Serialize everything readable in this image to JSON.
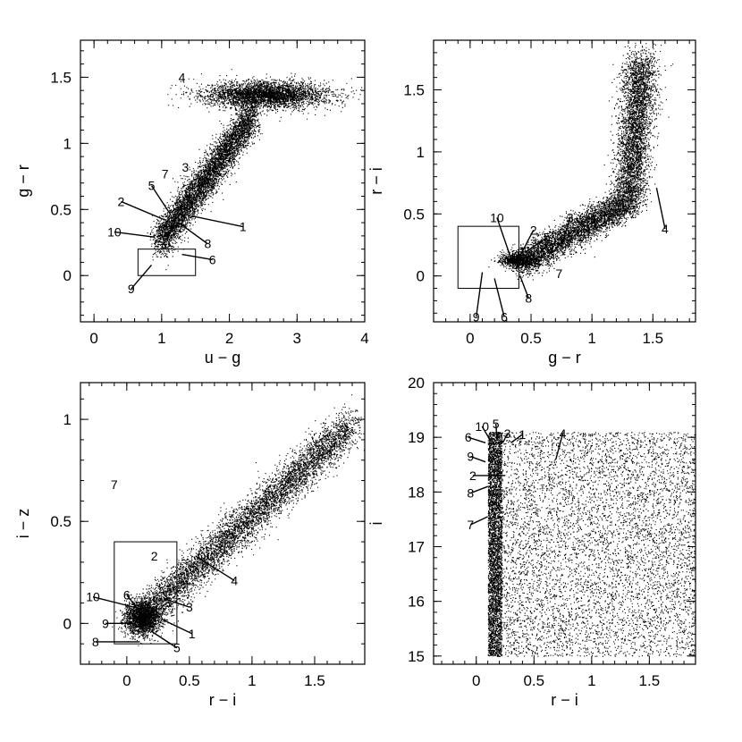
{
  "chart_data": [
    {
      "type": "scatter",
      "xlabel": "u − g",
      "ylabel": "g − r",
      "xlim": [
        -0.2,
        4.0
      ],
      "ylim": [
        -0.35,
        1.78
      ],
      "xticks": [
        0,
        1,
        2,
        3,
        4
      ],
      "xtick_labels": [
        "0",
        "1",
        "2",
        "3",
        "4"
      ],
      "yticks": [
        0,
        0.5,
        1,
        1.5
      ],
      "ytick_labels": [
        "0",
        "0.5",
        "1",
        "1.5"
      ],
      "grid": false,
      "density": [
        {
          "shape": "band",
          "from": [
            0.95,
            0.25
          ],
          "to": [
            2.35,
            1.22
          ],
          "width": 0.07,
          "weight": 0.6
        },
        {
          "shape": "blob",
          "center": [
            2.55,
            1.37
          ],
          "spread": [
            0.45,
            0.05
          ],
          "weight": 0.4
        }
      ],
      "selection_box": {
        "x": [
          0.65,
          1.5
        ],
        "y": [
          0.0,
          0.2
        ]
      },
      "annotations": [
        {
          "label": "1",
          "text_at": [
            2.2,
            0.37
          ],
          "point_at": [
            1.45,
            0.45
          ]
        },
        {
          "label": "2",
          "text_at": [
            0.4,
            0.56
          ],
          "point_at": [
            1.05,
            0.42
          ]
        },
        {
          "label": "3",
          "text_at": [
            1.35,
            0.82
          ],
          "point_at": null
        },
        {
          "label": "4",
          "text_at": [
            1.3,
            1.5
          ],
          "point_at": null
        },
        {
          "label": "5",
          "text_at": [
            0.85,
            0.68
          ],
          "point_at": [
            1.12,
            0.47
          ]
        },
        {
          "label": "6",
          "text_at": [
            1.75,
            0.12
          ],
          "point_at": [
            1.3,
            0.16
          ]
        },
        {
          "label": "7",
          "text_at": [
            1.05,
            0.77
          ],
          "point_at": null
        },
        {
          "label": "8",
          "text_at": [
            1.68,
            0.24
          ],
          "point_at": [
            1.25,
            0.4
          ]
        },
        {
          "label": "9",
          "text_at": [
            0.55,
            -0.1
          ],
          "point_at": [
            0.85,
            0.08
          ]
        },
        {
          "label": "10",
          "text_at": [
            0.3,
            0.33
          ],
          "point_at": [
            0.9,
            0.29
          ]
        }
      ]
    },
    {
      "type": "scatter",
      "xlabel": "g − r",
      "ylabel": "r − i",
      "xlim": [
        -0.3,
        1.85
      ],
      "ylim": [
        -0.37,
        1.9
      ],
      "xticks": [
        0,
        0.5,
        1,
        1.5
      ],
      "xtick_labels": [
        "0",
        "0.5",
        "1",
        "1.5"
      ],
      "yticks": [
        0,
        0.5,
        1,
        1.5
      ],
      "ytick_labels": [
        "0",
        "0.5",
        "1",
        "1.5"
      ],
      "grid": false,
      "density": [
        {
          "shape": "band",
          "from": [
            0.4,
            0.1
          ],
          "to": [
            1.3,
            0.6
          ],
          "width": 0.06,
          "weight": 0.45
        },
        {
          "shape": "band",
          "from": [
            1.3,
            0.6
          ],
          "to": [
            1.4,
            1.75
          ],
          "width": 0.07,
          "weight": 0.45
        },
        {
          "shape": "blob",
          "center": [
            0.4,
            0.13
          ],
          "spread": [
            0.08,
            0.03
          ],
          "weight": 0.1
        }
      ],
      "selection_box": {
        "x": [
          -0.1,
          0.4
        ],
        "y": [
          -0.1,
          0.4
        ]
      },
      "annotations": [
        {
          "label": "1",
          "text_at": [
            0.43,
            0.2
          ],
          "point_at": [
            0.4,
            0.15
          ]
        },
        {
          "label": "2",
          "text_at": [
            0.52,
            0.37
          ],
          "point_at": [
            0.42,
            0.18
          ]
        },
        {
          "label": "3",
          "text_at": [
            0.82,
            0.47
          ],
          "point_at": [
            0.75,
            0.24
          ]
        },
        {
          "label": "4",
          "text_at": [
            1.6,
            0.38
          ],
          "point_at": [
            1.53,
            0.71
          ]
        },
        {
          "label": "5",
          "text_at": [
            0.63,
            0.31
          ],
          "point_at": [
            0.45,
            0.19
          ]
        },
        {
          "label": "6",
          "text_at": [
            0.28,
            -0.33
          ],
          "point_at": [
            0.2,
            -0.02
          ]
        },
        {
          "label": "7",
          "text_at": [
            0.73,
            0.02
          ],
          "point_at": null
        },
        {
          "label": "8",
          "text_at": [
            0.48,
            -0.18
          ],
          "point_at": [
            0.41,
            0.0
          ]
        },
        {
          "label": "9",
          "text_at": [
            0.05,
            -0.33
          ],
          "point_at": [
            0.1,
            0.03
          ]
        },
        {
          "label": "10",
          "text_at": [
            0.22,
            0.47
          ],
          "point_at": [
            0.35,
            0.1
          ]
        }
      ]
    },
    {
      "type": "scatter",
      "xlabel": "r − i",
      "ylabel": "i − z",
      "xlim": [
        -0.37,
        1.9
      ],
      "ylim": [
        -0.2,
        1.18
      ],
      "xticks": [
        0,
        0.5,
        1,
        1.5
      ],
      "xtick_labels": [
        "0",
        "0.5",
        "1",
        "1.5"
      ],
      "yticks": [
        0,
        0.5,
        1
      ],
      "ytick_labels": [
        "0",
        "0.5",
        "1"
      ],
      "grid": false,
      "density": [
        {
          "shape": "band",
          "from": [
            0.1,
            0.02
          ],
          "to": [
            1.8,
            0.98
          ],
          "width": 0.05,
          "weight": 0.75
        },
        {
          "shape": "blob",
          "center": [
            0.12,
            0.03
          ],
          "spread": [
            0.07,
            0.04
          ],
          "weight": 0.25
        }
      ],
      "selection_box": {
        "x": [
          -0.1,
          0.4
        ],
        "y": [
          -0.1,
          0.4
        ]
      },
      "annotations": [
        {
          "label": "1",
          "text_at": [
            0.52,
            -0.05
          ],
          "point_at": [
            0.28,
            0.02
          ]
        },
        {
          "label": "2",
          "text_at": [
            0.22,
            0.33
          ],
          "point_at": null
        },
        {
          "label": "3",
          "text_at": [
            0.5,
            0.08
          ],
          "point_at": [
            0.3,
            0.12
          ]
        },
        {
          "label": "4",
          "text_at": [
            0.86,
            0.21
          ],
          "point_at": [
            0.55,
            0.33
          ]
        },
        {
          "label": "5",
          "text_at": [
            0.4,
            -0.12
          ],
          "point_at": [
            0.2,
            -0.04
          ]
        },
        {
          "label": "6",
          "text_at": [
            0.0,
            0.14
          ],
          "point_at": [
            0.1,
            0.06
          ]
        },
        {
          "label": "7",
          "text_at": [
            -0.1,
            0.68
          ],
          "point_at": null
        },
        {
          "label": "8",
          "text_at": [
            -0.25,
            -0.09
          ],
          "point_at": [
            0.1,
            -0.09
          ]
        },
        {
          "label": "9",
          "text_at": [
            -0.17,
            0.0
          ],
          "point_at": [
            0.05,
            0.0
          ]
        },
        {
          "label": "10",
          "text_at": [
            -0.27,
            0.13
          ],
          "point_at": [
            0.12,
            0.07
          ]
        }
      ]
    },
    {
      "type": "scatter",
      "xlabel": "r − i",
      "ylabel": "i",
      "xlim": [
        -0.37,
        1.9
      ],
      "ylim": [
        14.85,
        20.0
      ],
      "xticks": [
        0,
        0.5,
        1,
        1.5
      ],
      "xtick_labels": [
        "0",
        "0.5",
        "1",
        "1.5"
      ],
      "yticks": [
        15,
        16,
        17,
        18,
        19,
        20
      ],
      "ytick_labels": [
        "15",
        "16",
        "17",
        "18",
        "19",
        "20"
      ],
      "grid": false,
      "density": [
        {
          "shape": "rect",
          "x": [
            0.1,
            1.9
          ],
          "y": [
            15.0,
            19.1
          ],
          "weight": 0.65
        },
        {
          "shape": "rect",
          "x": [
            0.1,
            0.22
          ],
          "y": [
            15.0,
            19.1
          ],
          "weight": 0.35
        }
      ],
      "selection_box": null,
      "annotations": [
        {
          "label": "1",
          "text_at": [
            0.4,
            19.05
          ],
          "point_at": [
            0.3,
            18.9
          ]
        },
        {
          "label": "2",
          "text_at": [
            -0.03,
            18.3
          ],
          "point_at": [
            0.25,
            18.3
          ]
        },
        {
          "label": "3",
          "text_at": [
            0.27,
            19.07
          ],
          "point_at": [
            0.23,
            18.9
          ]
        },
        {
          "label": "4",
          "text_at": [
            0.75,
            19.07
          ],
          "point_at": [
            0.69,
            18.6
          ]
        },
        {
          "label": "5",
          "text_at": [
            0.17,
            19.25
          ],
          "point_at": [
            0.18,
            18.95
          ]
        },
        {
          "label": "6",
          "text_at": [
            -0.07,
            19.0
          ],
          "point_at": [
            0.08,
            18.9
          ]
        },
        {
          "label": "7",
          "text_at": [
            -0.05,
            17.4
          ],
          "point_at": [
            0.1,
            17.55
          ]
        },
        {
          "label": "8",
          "text_at": [
            -0.05,
            17.98
          ],
          "point_at": [
            0.1,
            18.1
          ]
        },
        {
          "label": "9",
          "text_at": [
            -0.05,
            18.65
          ],
          "point_at": [
            0.08,
            18.55
          ]
        },
        {
          "label": "10",
          "text_at": [
            0.05,
            19.2
          ],
          "point_at": [
            0.12,
            18.95
          ]
        }
      ]
    }
  ]
}
